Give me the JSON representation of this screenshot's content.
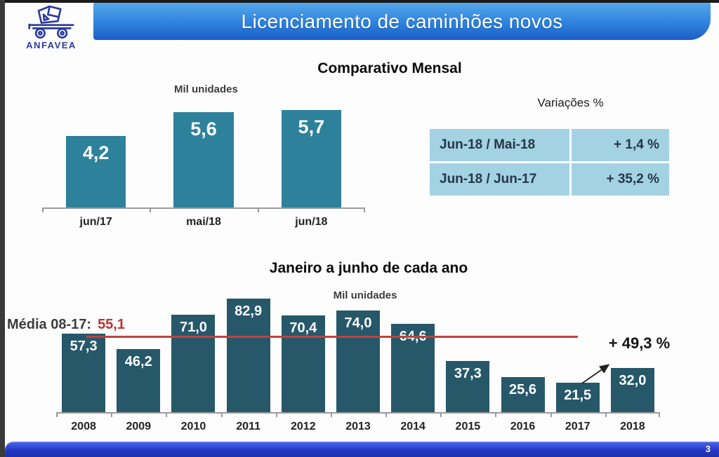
{
  "header": {
    "logo_text": "ANFAVEA",
    "title": "Licenciamento de caminhões novos"
  },
  "variations_table": {
    "title": "Variações %",
    "rows": [
      {
        "label": "Jun-18 / Mai-18",
        "value": "+ 1,4 %"
      },
      {
        "label": "Jun-18 / Jun-17",
        "value": "+ 35,2 %"
      }
    ]
  },
  "footer": {
    "page_number": "3"
  },
  "colors": {
    "header_top": "#55a7ea",
    "header_bottom": "#1a5ec6",
    "monthly_bar": "#2e819b",
    "yearly_bar": "#26586a",
    "average_line": "#c0413d",
    "average_value_text": "#c0312e",
    "table_cell": "#a3d2e2",
    "table_text": "#253746",
    "footer_top": "#4a66ee",
    "footer_bottom": "#1e2fae",
    "logo_navy": "#2a3b9c",
    "axis_gray": "#9a9a9a"
  },
  "chart_data": [
    {
      "id": "monthly",
      "type": "bar",
      "title": "Comparativo Mensal",
      "units_label": "Mil unidades",
      "categories": [
        "jun/17",
        "mai/18",
        "jun/18"
      ],
      "values": [
        4.2,
        5.6,
        5.7
      ],
      "labels": [
        "4,2",
        "5,6",
        "5,7"
      ],
      "ylim": [
        0,
        6.0
      ],
      "grid": false,
      "legend": "none",
      "bar_color": "#2e819b"
    },
    {
      "id": "yearly",
      "type": "bar",
      "title": "Janeiro a junho de cada ano",
      "units_label": "Mil unidades",
      "categories": [
        "2008",
        "2009",
        "2010",
        "2011",
        "2012",
        "2013",
        "2014",
        "2015",
        "2016",
        "2017",
        "2018"
      ],
      "values": [
        57.3,
        46.2,
        71.0,
        82.9,
        70.4,
        74.0,
        64.6,
        37.3,
        25.6,
        21.5,
        32.0
      ],
      "labels": [
        "57,3",
        "46,2",
        "71,0",
        "82,9",
        "70,4",
        "74,0",
        "64,6",
        "37,3",
        "25,6",
        "21,5",
        "32,0"
      ],
      "ylim": [
        0,
        88
      ],
      "grid": false,
      "legend": "none",
      "bar_color": "#26586a",
      "average": {
        "label": "Média 08-17:",
        "value": 55.1,
        "value_label": "55,1",
        "line_color": "#c0413d",
        "span_indices": [
          0,
          9
        ]
      },
      "growth_annotation": {
        "label": "+ 49,3 %",
        "from_index": 9,
        "to_index": 10
      }
    }
  ]
}
